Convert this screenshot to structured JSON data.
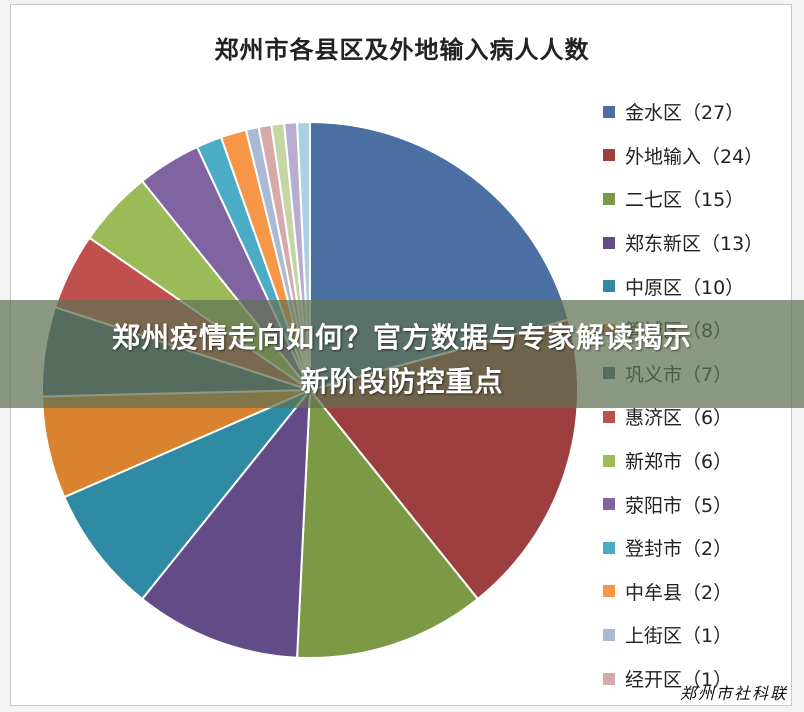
{
  "chart_data": {
    "type": "pie",
    "title": "郑州市各县区及外地输入病人人数",
    "legend_position": "right",
    "slices": [
      {
        "label": "金水区（27）",
        "value": 27,
        "color": "#4a6fa2"
      },
      {
        "label": "外地输入（24）",
        "value": 24,
        "color": "#9c3f3e"
      },
      {
        "label": "二七区（15）",
        "value": 15,
        "color": "#7c9a45"
      },
      {
        "label": "郑东新区（13）",
        "value": 13,
        "color": "#624b87"
      },
      {
        "label": "中原区（10）",
        "value": 10,
        "color": "#2f8aa3"
      },
      {
        "label": "管城区（8）",
        "value": 8,
        "color": "#d9822f"
      },
      {
        "label": "巩义市（7）",
        "value": 7,
        "color": "#3f5d7f"
      },
      {
        "label": "惠济区（6）",
        "value": 6,
        "color": "#c0504d"
      },
      {
        "label": "新郑市（6）",
        "value": 6,
        "color": "#9bbb59"
      },
      {
        "label": "荥阳市（5）",
        "value": 5,
        "color": "#8064a2"
      },
      {
        "label": "登封市（2）",
        "value": 2,
        "color": "#4bacc6"
      },
      {
        "label": "中牟县（2）",
        "value": 2,
        "color": "#f79646"
      },
      {
        "label": "上街区（1）",
        "value": 1,
        "color": "#aab9d4"
      },
      {
        "label": "经开区（1）",
        "value": 1,
        "color": "#d6a9aa"
      },
      {
        "label": "",
        "value": 1,
        "color": "#c5d6a4"
      },
      {
        "label": "",
        "value": 1,
        "color": "#b8add0"
      },
      {
        "label": "",
        "value": 1,
        "color": "#a8d2e2"
      }
    ],
    "legend_visible_count": 14
  },
  "banner": {
    "line1": "郑州疫情走向如何？官方数据与专家解读揭示",
    "line2": "新阶段防控重点"
  },
  "watermark": "郑州市社科联"
}
